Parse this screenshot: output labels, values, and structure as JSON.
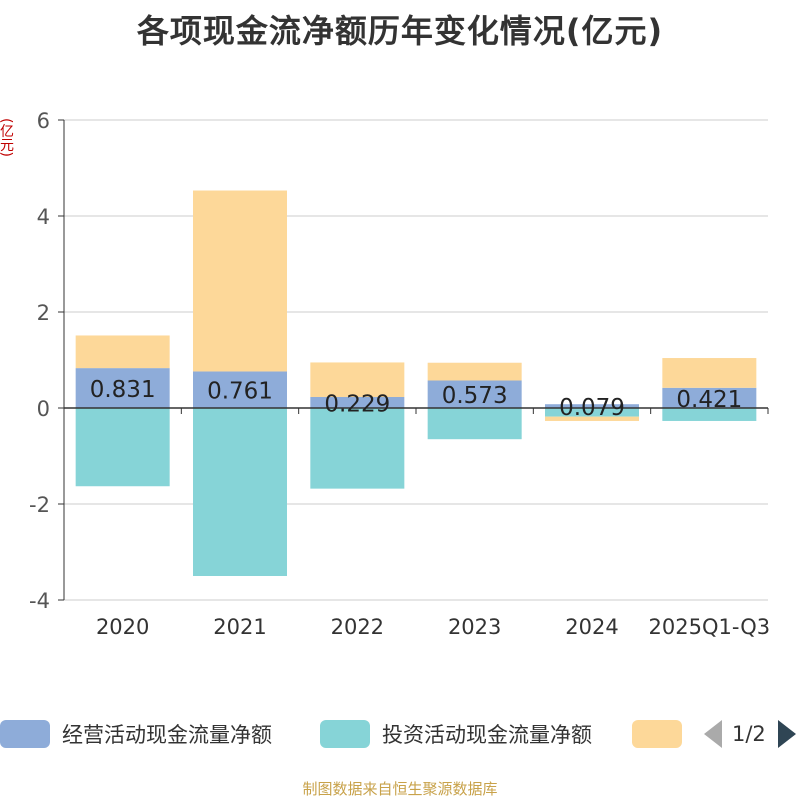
{
  "title": "各项现金流净额历年变化情况(亿元)",
  "y_unit": "(亿元)",
  "footer": "制图数据来自恒生聚源数据库",
  "legend": {
    "items": [
      {
        "label": "经营活动现金流量净额",
        "color": "#8eacd9"
      },
      {
        "label": "投资活动现金流量净额",
        "color": "#86d4d7"
      },
      {
        "label": "",
        "color": "#fdd899"
      }
    ],
    "page": "1/2"
  },
  "chart_data": {
    "type": "bar",
    "stacked": true,
    "categories": [
      "2020",
      "2021",
      "2022",
      "2023",
      "2024",
      "2025Q1-Q3"
    ],
    "ylim": [
      -4,
      6
    ],
    "yticks": [
      -4,
      -2,
      0,
      2,
      4,
      6
    ],
    "grid": true,
    "legend_position": "bottom",
    "series": [
      {
        "name": "经营活动现金流量净额",
        "color": "#8eacd9",
        "values": [
          0.831,
          0.761,
          0.229,
          0.573,
          0.079,
          0.421
        ],
        "labels": [
          "0.831",
          "0.761",
          "0.229",
          "0.573",
          "0.079",
          "0.421"
        ]
      },
      {
        "name": "投资活动现金流量净额",
        "color": "#86d4d7",
        "values": [
          -1.63,
          -3.5,
          -1.68,
          -0.65,
          -0.18,
          -0.27
        ]
      },
      {
        "color": "#fdd899",
        "values": [
          0.68,
          3.77,
          0.72,
          0.37,
          -0.09,
          0.62
        ]
      }
    ]
  }
}
